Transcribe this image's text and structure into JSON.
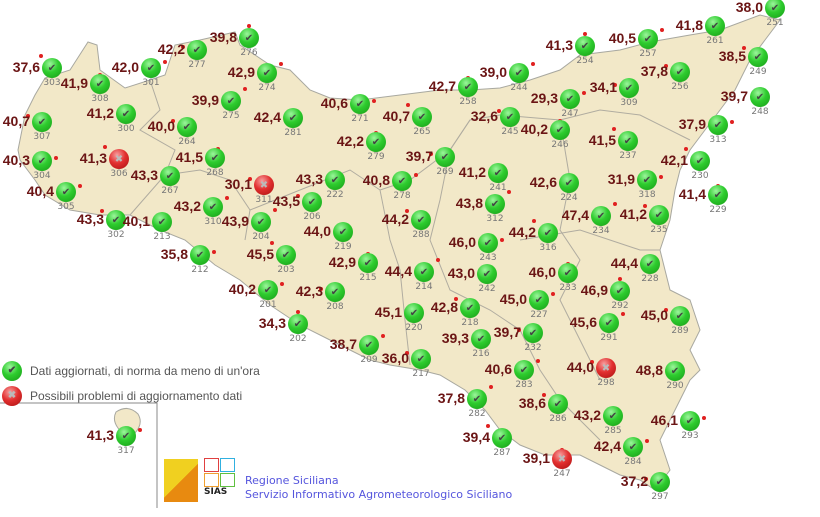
{
  "legend": {
    "ok_label": "Dati aggiornati, di norma da meno di un'ora",
    "error_label": "Possibili problemi di aggiornamento dati",
    "ok_icon": "check-green-icon",
    "error_icon": "cross-red-icon"
  },
  "footer": {
    "line1": "Regione Siciliana",
    "line2": "Servizio Informativo Agrometeorologico Siciliano",
    "logo_text": "SIAS"
  },
  "colors": {
    "land": "#f2e8c8",
    "value": "#6b1515",
    "ok": "#2ecc2e",
    "error": "#e23030",
    "footer_text": "#5555dd"
  },
  "stations": [
    {
      "id": "303",
      "value": "37,6",
      "status": "ok"
    },
    {
      "id": "308",
      "value": "41,9",
      "status": "ok"
    },
    {
      "id": "301",
      "value": "42,0",
      "status": "ok"
    },
    {
      "id": "277",
      "value": "42,2",
      "status": "ok"
    },
    {
      "id": "276",
      "value": "39,8",
      "status": "ok"
    },
    {
      "id": "274",
      "value": "42,9",
      "status": "ok"
    },
    {
      "id": "307",
      "value": "40,7",
      "status": "ok"
    },
    {
      "id": "300",
      "value": "41,2",
      "status": "ok"
    },
    {
      "id": "275",
      "value": "39,9",
      "status": "ok"
    },
    {
      "id": "264",
      "value": "40,0",
      "status": "ok"
    },
    {
      "id": "281",
      "value": "42,4",
      "status": "ok"
    },
    {
      "id": "304",
      "value": "40,3",
      "status": "ok"
    },
    {
      "id": "306",
      "value": "41,3",
      "status": "error"
    },
    {
      "id": "268",
      "value": "41,5",
      "status": "ok"
    },
    {
      "id": "305",
      "value": "40,4",
      "status": "ok"
    },
    {
      "id": "302",
      "value": "43,3",
      "status": "ok"
    },
    {
      "id": "267",
      "value": "43,3",
      "status": "ok"
    },
    {
      "id": "310",
      "value": "43,2",
      "status": "ok"
    },
    {
      "id": "311",
      "value": "30,1",
      "status": "error"
    },
    {
      "id": "213",
      "value": "40,1",
      "status": "ok"
    },
    {
      "id": "204",
      "value": "43,9",
      "status": "ok"
    },
    {
      "id": "206",
      "value": "43,5",
      "status": "ok"
    },
    {
      "id": "222",
      "value": "43,3",
      "status": "ok"
    },
    {
      "id": "271",
      "value": "40,6",
      "status": "ok"
    },
    {
      "id": "265",
      "value": "40,7",
      "status": "ok"
    },
    {
      "id": "279",
      "value": "42,2",
      "status": "ok"
    },
    {
      "id": "278",
      "value": "40,8",
      "status": "ok"
    },
    {
      "id": "269",
      "value": "39,7",
      "status": "ok"
    },
    {
      "id": "258",
      "value": "42,7",
      "status": "ok"
    },
    {
      "id": "244",
      "value": "39,0",
      "status": "ok"
    },
    {
      "id": "245",
      "value": "32,6",
      "status": "ok"
    },
    {
      "id": "241",
      "value": "41,2",
      "status": "ok"
    },
    {
      "id": "312",
      "value": "43,8",
      "status": "ok"
    },
    {
      "id": "288",
      "value": "44,2",
      "status": "ok"
    },
    {
      "id": "219",
      "value": "44,0",
      "status": "ok"
    },
    {
      "id": "212",
      "value": "35,8",
      "status": "ok"
    },
    {
      "id": "203",
      "value": "45,5",
      "status": "ok"
    },
    {
      "id": "215",
      "value": "42,9",
      "status": "ok"
    },
    {
      "id": "201",
      "value": "40,2",
      "status": "ok"
    },
    {
      "id": "208",
      "value": "42,3",
      "status": "ok"
    },
    {
      "id": "202",
      "value": "34,3",
      "status": "ok"
    },
    {
      "id": "209",
      "value": "38,7",
      "status": "ok"
    },
    {
      "id": "217",
      "value": "36,0",
      "status": "ok"
    },
    {
      "id": "220",
      "value": "45,1",
      "status": "ok"
    },
    {
      "id": "214",
      "value": "44,4",
      "status": "ok"
    },
    {
      "id": "218",
      "value": "42,8",
      "status": "ok"
    },
    {
      "id": "242",
      "value": "43,0",
      "status": "ok"
    },
    {
      "id": "243",
      "value": "46,0",
      "status": "ok"
    },
    {
      "id": "316",
      "value": "44,2",
      "status": "ok"
    },
    {
      "id": "233",
      "value": "46,0",
      "status": "ok"
    },
    {
      "id": "227",
      "value": "45,0",
      "status": "ok"
    },
    {
      "id": "232",
      "value": "39,7",
      "status": "ok"
    },
    {
      "id": "216",
      "value": "39,3",
      "status": "ok"
    },
    {
      "id": "283",
      "value": "40,6",
      "status": "ok"
    },
    {
      "id": "298",
      "value": "44,0",
      "status": "error"
    },
    {
      "id": "290",
      "value": "48,8",
      "status": "ok"
    },
    {
      "id": "282",
      "value": "37,8",
      "status": "ok"
    },
    {
      "id": "286",
      "value": "38,6",
      "status": "ok"
    },
    {
      "id": "285",
      "value": "43,2",
      "status": "ok"
    },
    {
      "id": "293",
      "value": "46,1",
      "status": "ok"
    },
    {
      "id": "287",
      "value": "39,4",
      "status": "ok"
    },
    {
      "id": "247",
      "value": "39,1",
      "status": "error"
    },
    {
      "id": "284",
      "value": "42,4",
      "status": "ok"
    },
    {
      "id": "297",
      "value": "37,2",
      "status": "ok"
    },
    {
      "id": "292",
      "value": "46,9",
      "status": "ok"
    },
    {
      "id": "291",
      "value": "45,6",
      "status": "ok"
    },
    {
      "id": "289",
      "value": "45,0",
      "status": "ok"
    },
    {
      "id": "228",
      "value": "44,4",
      "status": "ok"
    },
    {
      "id": "234",
      "value": "47,4",
      "status": "ok"
    },
    {
      "id": "235",
      "value": "41,2",
      "status": "ok"
    },
    {
      "id": "224",
      "value": "42,6",
      "status": "ok"
    },
    {
      "id": "318",
      "value": "31,9",
      "status": "ok"
    },
    {
      "id": "237",
      "value": "41,5",
      "status": "ok"
    },
    {
      "id": "246",
      "value": "40,2",
      "status": "ok"
    },
    {
      "id": "247",
      "value": "29,3",
      "status": "ok"
    },
    {
      "id": "309",
      "value": "34,1",
      "status": "ok"
    },
    {
      "id": "254",
      "value": "41,3",
      "status": "ok"
    },
    {
      "id": "257",
      "value": "40,5",
      "status": "ok"
    },
    {
      "id": "256",
      "value": "37,8",
      "status": "ok"
    },
    {
      "id": "261",
      "value": "41,8",
      "status": "ok"
    },
    {
      "id": "251",
      "value": "38,0",
      "status": "ok"
    },
    {
      "id": "249",
      "value": "38,5",
      "status": "ok"
    },
    {
      "id": "248",
      "value": "39,7",
      "status": "ok"
    },
    {
      "id": "313",
      "value": "37,9",
      "status": "ok"
    },
    {
      "id": "230",
      "value": "42,1",
      "status": "ok"
    },
    {
      "id": "229",
      "value": "41,4",
      "status": "ok"
    },
    {
      "id": "317",
      "value": "41,3",
      "status": "ok"
    }
  ]
}
